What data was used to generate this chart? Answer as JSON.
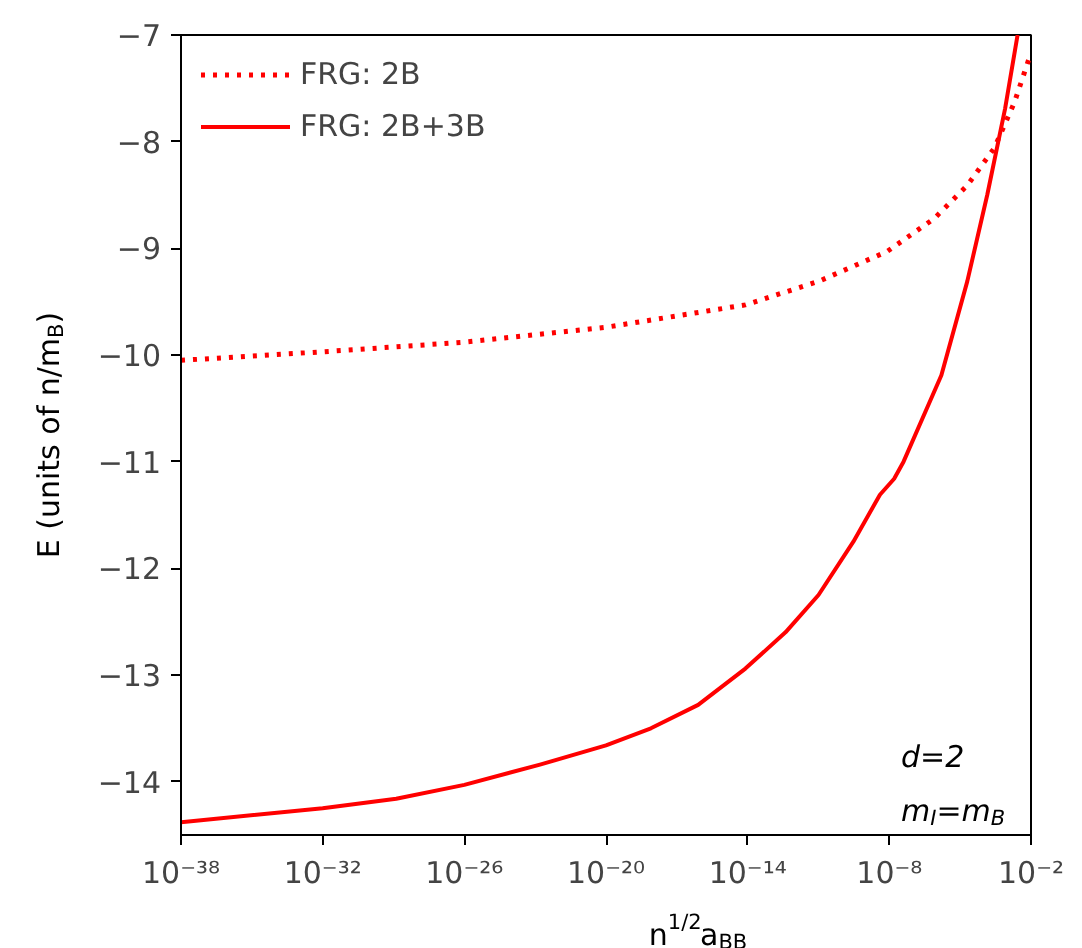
{
  "chart_data": {
    "type": "line",
    "xlabel": "n$^{1/2}$a$_{BB}$",
    "ylabel": "E (units of n/m$_{B}$)",
    "annotations": [
      "d=2",
      "m$_{I}$=m$_{B}$"
    ],
    "log": "x",
    "grid": false,
    "legend": "top left",
    "xlim": [
      1e-38,
      0.01
    ],
    "ylim": [
      -14.5,
      -7
    ],
    "xticks": [
      {
        "value": 1e-38,
        "label": "10⁻³⁸"
      },
      {
        "value": 1e-32,
        "label": "10⁻³²"
      },
      {
        "value": 1e-26,
        "label": "10⁻²⁶"
      },
      {
        "value": 1e-20,
        "label": "10⁻²⁰"
      },
      {
        "value": 1e-14,
        "label": "10⁻¹⁴"
      },
      {
        "value": 1e-08,
        "label": "10⁻⁸"
      },
      {
        "value": 0.01,
        "label": "10⁻²"
      }
    ],
    "yticks": [
      {
        "value": -14,
        "label": "−14"
      },
      {
        "value": -13,
        "label": "−13"
      },
      {
        "value": -12,
        "label": "−12"
      },
      {
        "value": -11,
        "label": "−11"
      },
      {
        "value": -10,
        "label": "−10"
      },
      {
        "value": -9,
        "label": "−9"
      },
      {
        "value": -8,
        "label": "−8"
      },
      {
        "value": -7,
        "label": "−7"
      }
    ],
    "series": [
      {
        "name": "FRG: 2B",
        "color": "#ff0000",
        "line_style": "dotted",
        "x": [
          1e-38,
          1e-32,
          1e-26,
          1e-20,
          8e-15,
          1e-11,
          8e-09,
          8e-07,
          2e-05,
          0.00028,
          0.002,
          0.0083
        ],
        "values": [
          -10.05,
          -9.97,
          -9.88,
          -9.74,
          -9.53,
          -9.31,
          -9.03,
          -8.72,
          -8.41,
          -8.06,
          -7.63,
          -7.22
        ]
      },
      {
        "name": "FRG: 2B+3B",
        "color": "#ff0000",
        "line_style": "solid",
        "x": [
          1e-38,
          1e-32,
          1.3e-29,
          1e-26,
          1.6e-23,
          1e-20,
          8e-19,
          8e-17,
          8e-15,
          4e-13,
          1e-11,
          3e-10,
          4e-09,
          1.6e-08,
          4e-08,
          1.6e-06,
          2e-05,
          0.00014,
          0.0008,
          0.0027
        ],
        "values": [
          -14.38,
          -14.25,
          -14.16,
          -14.03,
          -13.84,
          -13.66,
          -13.5,
          -13.28,
          -12.94,
          -12.6,
          -12.25,
          -11.75,
          -11.31,
          -11.16,
          -11.0,
          -10.19,
          -9.31,
          -8.5,
          -7.69,
          -7.0
        ]
      }
    ]
  }
}
